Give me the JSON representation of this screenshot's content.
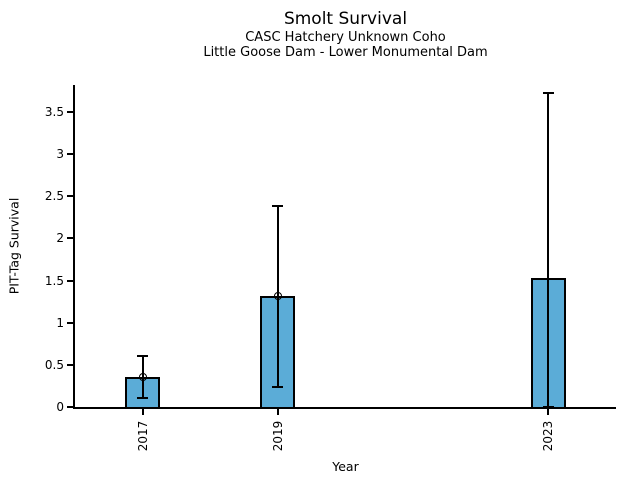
{
  "chart_data": {
    "type": "bar",
    "title": "Smolt Survival",
    "subtitle": [
      "CASC Hatchery Unknown Coho",
      "Little Goose Dam - Lower Monumental Dam"
    ],
    "xlabel": "Year",
    "ylabel": "PIT-Tag Survival",
    "categories": [
      "2017",
      "2019",
      "2023"
    ],
    "x": [
      2017,
      2019,
      2023
    ],
    "values": [
      0.36,
      1.32,
      1.53
    ],
    "error_low": [
      0.11,
      0.24,
      0.0
    ],
    "error_high": [
      0.6,
      2.38,
      3.73
    ],
    "markers": [
      0.36,
      1.32,
      null
    ],
    "xlim": [
      2016,
      2024
    ],
    "ylim": [
      0,
      3.82
    ],
    "yticks": [
      0,
      0.5,
      1,
      1.5,
      2,
      2.5,
      3,
      3.5
    ],
    "ytick_labels": [
      "0",
      "0.5",
      "1",
      "1.5",
      "2",
      "2.5",
      "3",
      "3.5"
    ],
    "bar_width_years": 0.52,
    "grid": false,
    "legend": false,
    "style": {
      "bar_fill": "#5BACD7",
      "edge_color": "#000000",
      "background": "#FFFFFF"
    }
  }
}
